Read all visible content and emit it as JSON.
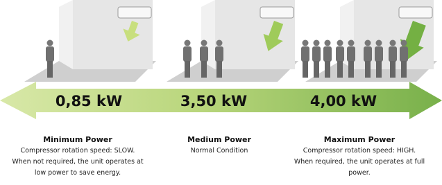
{
  "panels": [
    {
      "power": "0,85 kW",
      "title": "Minimum Power",
      "lines": [
        "Compressor rotation speed: SLOW.",
        "When not required, the unit operates at",
        "low power to save energy."
      ]
    },
    {
      "power": "3,50 kW",
      "title": "Medium Power",
      "lines": [
        "Normal Condition"
      ]
    },
    {
      "power": "4,00 kW",
      "title": "Maximum Power",
      "lines": [
        "Compressor rotation speed: HIGH.",
        "When required, the unit operates at full",
        "power."
      ]
    }
  ]
}
